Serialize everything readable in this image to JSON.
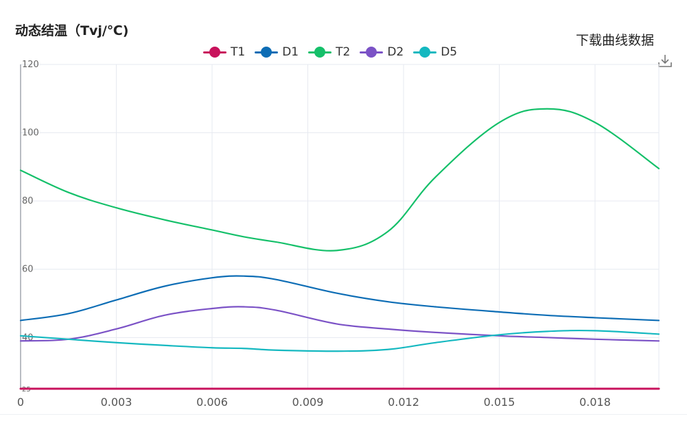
{
  "title": "动态结温（Tvj/℃)",
  "download": {
    "label": "下载曲线数据",
    "icon": "download-icon"
  },
  "chart_data": {
    "type": "line",
    "title": "动态结温（Tvj/℃)",
    "xlabel": "",
    "ylabel": "",
    "xlim": [
      0,
      0.02
    ],
    "ylim": [
      25,
      120
    ],
    "x_ticks": [
      0,
      0.003,
      0.006,
      0.009,
      0.012,
      0.015,
      0.018
    ],
    "x_tick_labels": [
      "0",
      "0.003",
      "0.006",
      "0.009",
      "0.012",
      "0.015",
      "0.018"
    ],
    "y_ticks": [
      25,
      40,
      60,
      80,
      100,
      120
    ],
    "y_tick_labels": [
      "25",
      "40",
      "60",
      "80",
      "100",
      "120"
    ],
    "grid": true,
    "legend_position": "top-center",
    "x": [
      0,
      0.0015,
      0.003,
      0.0045,
      0.006,
      0.007,
      0.008,
      0.0099,
      0.0115,
      0.013,
      0.015,
      0.0165,
      0.018,
      0.02
    ],
    "series": [
      {
        "name": "T1",
        "color": "#c8125c",
        "values": [
          25,
          25,
          25,
          25,
          25,
          25,
          25,
          25,
          25,
          25,
          25,
          25,
          25,
          25
        ]
      },
      {
        "name": "D1",
        "color": "#0d6db5",
        "values": [
          45,
          47,
          51,
          55,
          57.5,
          58,
          57,
          53,
          50.5,
          49,
          47.5,
          46.5,
          45.8,
          45
        ]
      },
      {
        "name": "T2",
        "color": "#15c06a",
        "values": [
          89,
          82.5,
          78,
          74.5,
          71.5,
          69.5,
          68,
          65.5,
          71,
          87,
          103,
          107,
          103,
          89.5
        ]
      },
      {
        "name": "D2",
        "color": "#7b52c6",
        "values": [
          39,
          39.5,
          42.5,
          46.5,
          48.5,
          49,
          48,
          44,
          42.5,
          41.5,
          40.5,
          40,
          39.5,
          39
        ]
      },
      {
        "name": "D5",
        "color": "#14b8c0",
        "values": [
          40.5,
          39.5,
          38.5,
          37.7,
          37,
          36.8,
          36.3,
          36,
          36.5,
          38.5,
          40.8,
          41.8,
          42,
          41
        ]
      }
    ]
  }
}
